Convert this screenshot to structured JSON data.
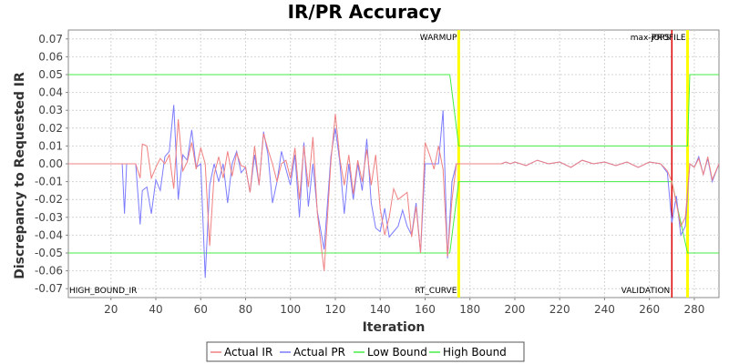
{
  "chart_data": {
    "type": "line",
    "title": "IR/PR Accuracy",
    "xlabel": "Iteration",
    "ylabel": "Discrepancy to Requested IR",
    "xlim": [
      1,
      291
    ],
    "ylim": [
      -0.075,
      0.075
    ],
    "x_ticks": [
      20,
      40,
      60,
      80,
      100,
      120,
      140,
      160,
      180,
      200,
      220,
      240,
      260,
      280
    ],
    "y_ticks": [
      -0.07,
      -0.06,
      -0.05,
      -0.04,
      -0.03,
      -0.02,
      -0.01,
      0.0,
      0.01,
      0.02,
      0.03,
      0.04,
      0.05,
      0.06,
      0.07
    ],
    "y_tick_labels": [
      "-0.07",
      "-0.06",
      "-0.05",
      "-0.04",
      "-0.03",
      "-0.02",
      "-0.01",
      "0.00",
      "0.01",
      "0.02",
      "0.03",
      "0.04",
      "0.05",
      "0.06",
      "0.07"
    ],
    "grid": true,
    "legend_position": "bottom",
    "series": [
      {
        "name": "Actual IR",
        "color": "#f08080",
        "x": [
          1,
          25,
          31,
          33,
          34,
          36,
          38,
          40,
          42,
          44,
          46,
          48,
          50,
          52,
          54,
          56,
          58,
          60,
          62,
          64,
          66,
          68,
          70,
          72,
          74,
          76,
          78,
          80,
          82,
          84,
          86,
          88,
          90,
          92,
          94,
          96,
          98,
          100,
          102,
          104,
          106,
          108,
          110,
          112,
          115,
          118,
          120,
          122,
          124,
          126,
          128,
          130,
          132,
          134,
          136,
          138,
          140,
          142,
          144,
          146,
          148,
          150,
          152,
          154,
          156,
          158,
          160,
          162,
          164,
          166,
          168,
          170,
          172,
          174,
          176,
          178,
          180,
          182,
          184,
          186,
          188,
          190,
          192,
          194,
          196,
          198,
          200,
          205,
          210,
          215,
          220,
          225,
          230,
          235,
          240,
          245,
          250,
          255,
          260,
          265,
          268,
          270,
          272,
          274,
          276,
          278,
          280,
          282,
          284,
          286,
          288,
          291
        ],
        "y": [
          0.0,
          0.0,
          0.0,
          -0.008,
          0.011,
          0.01,
          -0.008,
          -0.002,
          0.003,
          0.0,
          0.005,
          -0.014,
          0.025,
          -0.004,
          0.001,
          0.012,
          -0.003,
          0.009,
          0.0,
          -0.046,
          -0.006,
          0.004,
          -0.008,
          0.007,
          -0.007,
          0.006,
          -0.001,
          -0.002,
          -0.016,
          0.01,
          -0.012,
          0.017,
          0.008,
          0.0,
          -0.01,
          0.0,
          0.002,
          -0.008,
          0.009,
          -0.02,
          0.01,
          -0.013,
          0.015,
          -0.028,
          -0.06,
          0.001,
          0.028,
          0.003,
          -0.012,
          0.005,
          -0.017,
          0.002,
          -0.01,
          0.008,
          -0.012,
          0.005,
          -0.025,
          -0.04,
          -0.03,
          -0.014,
          -0.02,
          -0.018,
          -0.016,
          -0.041,
          -0.024,
          -0.05,
          0.012,
          0.005,
          -0.003,
          0.01,
          -0.003,
          -0.052,
          -0.02,
          0.0,
          0.0,
          0.0,
          0.0,
          0.0,
          0.0,
          0.0,
          0.0,
          0.0,
          0.0,
          0.0,
          0.001,
          0.0,
          0.001,
          -0.001,
          0.002,
          0.0,
          0.001,
          -0.002,
          0.002,
          0.0,
          0.001,
          -0.001,
          0.001,
          -0.002,
          0.001,
          0.0,
          -0.004,
          -0.01,
          -0.022,
          -0.035,
          -0.03,
          0.0,
          -0.002,
          0.003,
          -0.006,
          0.004,
          -0.009,
          0.0
        ]
      },
      {
        "name": "Actual PR",
        "color": "#7b7bff",
        "x": [
          1,
          25,
          26,
          27,
          31,
          33,
          34,
          36,
          38,
          40,
          42,
          44,
          46,
          48,
          50,
          52,
          54,
          56,
          58,
          60,
          62,
          64,
          66,
          68,
          70,
          72,
          74,
          76,
          78,
          80,
          82,
          84,
          86,
          88,
          90,
          92,
          94,
          96,
          98,
          100,
          102,
          104,
          106,
          108,
          110,
          112,
          115,
          118,
          120,
          122,
          124,
          126,
          128,
          130,
          132,
          134,
          136,
          138,
          140,
          142,
          144,
          146,
          148,
          150,
          152,
          154,
          156,
          158,
          160,
          162,
          164,
          166,
          168,
          170,
          172,
          174,
          176,
          178,
          180,
          182,
          184,
          186,
          188,
          190,
          192,
          194,
          196,
          198,
          200,
          205,
          210,
          215,
          220,
          225,
          230,
          235,
          240,
          245,
          250,
          255,
          260,
          265,
          268,
          270,
          272,
          274,
          276,
          278,
          280,
          282,
          284,
          286,
          288,
          291
        ],
        "y": [
          0.0,
          0.0,
          -0.028,
          0.0,
          0.0,
          -0.034,
          -0.015,
          -0.013,
          -0.028,
          -0.009,
          -0.015,
          0.004,
          0.007,
          0.033,
          -0.02,
          0.005,
          0.002,
          0.019,
          -0.002,
          0.0,
          -0.064,
          -0.012,
          0.0,
          -0.01,
          0.0,
          -0.022,
          0.0,
          0.007,
          -0.005,
          -0.002,
          -0.016,
          0.005,
          -0.012,
          0.018,
          0.005,
          -0.022,
          -0.01,
          0.007,
          -0.003,
          -0.012,
          0.005,
          -0.03,
          0.012,
          -0.024,
          0.0,
          -0.027,
          -0.048,
          0.004,
          0.02,
          0.001,
          -0.028,
          0.0,
          -0.02,
          0.0,
          -0.015,
          0.014,
          -0.022,
          -0.036,
          -0.038,
          -0.025,
          -0.041,
          -0.038,
          -0.035,
          -0.026,
          -0.035,
          -0.04,
          -0.022,
          -0.05,
          0.0,
          0.0,
          0.0,
          0.0,
          0.03,
          -0.053,
          -0.01,
          0.0,
          0.0,
          0.0,
          0.0,
          0.0,
          0.0,
          0.0,
          0.0,
          0.0,
          0.0,
          0.0,
          0.001,
          0.0,
          0.001,
          -0.001,
          0.002,
          0.0,
          0.001,
          -0.002,
          0.002,
          0.0,
          0.001,
          -0.001,
          0.001,
          -0.002,
          0.001,
          0.0,
          -0.005,
          -0.033,
          -0.018,
          -0.04,
          -0.035,
          0.0,
          -0.002,
          0.004,
          -0.006,
          0.003,
          -0.01,
          0.0
        ]
      },
      {
        "name": "Low Bound",
        "color": "#44ee44",
        "x": [
          1,
          171,
          175,
          270,
          277,
          291
        ],
        "y": [
          -0.05,
          -0.05,
          -0.01,
          -0.01,
          -0.05,
          -0.05
        ]
      },
      {
        "name": "High Bound",
        "color": "#44ee44",
        "x": [
          1,
          171,
          175,
          277,
          278,
          291
        ],
        "y": [
          0.05,
          0.05,
          0.01,
          0.01,
          0.05,
          0.05
        ]
      }
    ],
    "markers": [
      {
        "label": "WARMUP",
        "x": 175,
        "color": "#ffff00",
        "label_pos": "top"
      },
      {
        "label": "RT_CURVE",
        "x": 175,
        "color": "#ffff00",
        "label_pos": "bottom"
      },
      {
        "label": "max-jOPS",
        "x": 270,
        "color": "#dd0000",
        "label_pos": "top"
      },
      {
        "label": "VALIDATION",
        "x": 270,
        "color": "#dd0000",
        "label_pos": "bottom"
      },
      {
        "label": "PROFILE",
        "x": 277,
        "color": "#ffff00",
        "label_pos": "top"
      },
      {
        "label": "HIGH_BOUND_IR",
        "x": 1,
        "color": "#000000",
        "label_pos": "bottom"
      }
    ]
  }
}
